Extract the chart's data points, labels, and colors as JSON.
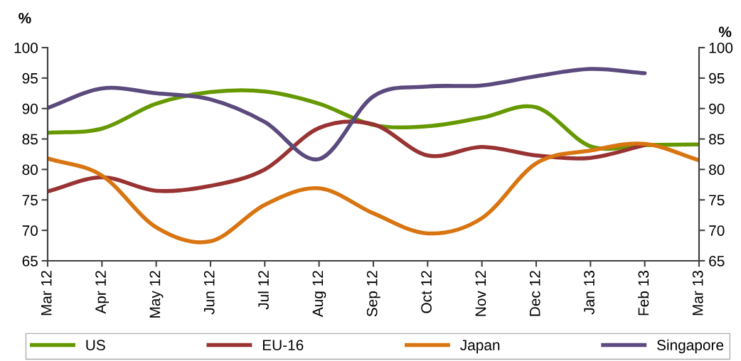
{
  "chart_data": {
    "type": "line",
    "ylabel": "%",
    "y2label": "%",
    "categories": [
      "Mar 12",
      "Apr 12",
      "May 12",
      "Jun 12",
      "Jul 12",
      "Aug 12",
      "Sep 12",
      "Oct 12",
      "Nov 12",
      "Dec 12",
      "Jan 13",
      "Feb 13",
      "Mar 13"
    ],
    "series": [
      {
        "name": "US",
        "color": "#669900",
        "values": [
          86.0,
          86.7,
          90.8,
          92.7,
          92.8,
          90.8,
          87.3,
          87.1,
          88.5,
          90.2,
          83.8,
          84.0,
          84.1
        ]
      },
      {
        "name": "EU-16",
        "color": "#993333",
        "values": [
          76.4,
          78.7,
          76.5,
          77.3,
          80.0,
          86.8,
          87.4,
          82.3,
          83.7,
          82.3,
          81.9,
          84.0,
          null
        ]
      },
      {
        "name": "Japan",
        "color": "#d97511",
        "values": [
          81.8,
          79.0,
          70.5,
          68.2,
          74.2,
          76.9,
          72.8,
          69.5,
          72.0,
          81.0,
          83.1,
          84.2,
          81.5
        ]
      },
      {
        "name": "Singapore",
        "color": "#5b4a7d",
        "values": [
          90.1,
          93.3,
          92.5,
          91.5,
          87.8,
          81.7,
          92.0,
          93.6,
          93.8,
          95.3,
          96.5,
          95.8,
          null
        ]
      }
    ],
    "ylim": [
      65,
      100
    ],
    "yticks": [
      65,
      70,
      75,
      80,
      85,
      90,
      95,
      100
    ],
    "y2lim": [
      65,
      100
    ],
    "y2ticks": [
      65,
      70,
      75,
      80,
      85,
      90,
      95,
      100
    ],
    "grid": false,
    "legend": "bottom",
    "marker": "none",
    "line_style": "solid"
  }
}
